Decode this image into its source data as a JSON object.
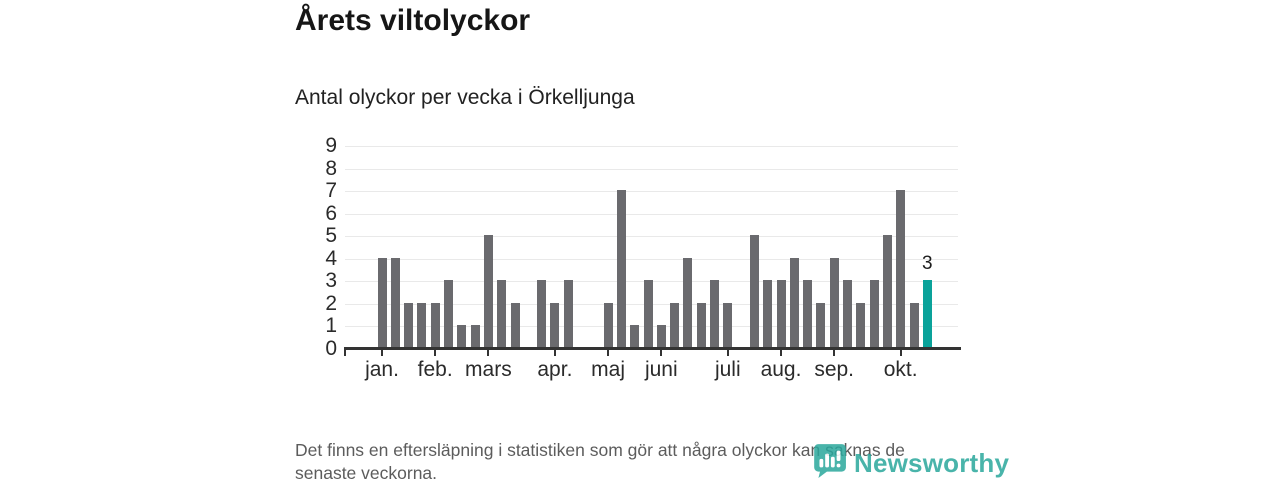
{
  "header": {
    "title": "Årets viltolyckor",
    "subtitle": "Antal olyckor per vecka i Örkelljunga"
  },
  "footer": {
    "lines": [
      "Det finns en eftersläpning i statistiken som gör att några olyckor kan saknas de",
      "senaste veckorna."
    ]
  },
  "logo": {
    "text": "Newsworthy",
    "icon": "newsworthy-pin-barchart-icon"
  },
  "colors": {
    "bar": "#6a6a6e",
    "highlight": "#0aa29a",
    "grid": "#e9e9e9",
    "axis": "#333333",
    "logo_teal": "#2aa79c"
  },
  "chart_data": {
    "type": "bar",
    "x_unit": "week",
    "title": "Årets viltolyckor",
    "subtitle": "Antal olyckor per vecka i Örkelljunga",
    "ylim": [
      0,
      9
    ],
    "y_ticks": [
      0,
      1,
      2,
      3,
      4,
      5,
      6,
      7,
      8,
      9
    ],
    "grid": true,
    "values": [
      4,
      4,
      2,
      2,
      2,
      3,
      1,
      1,
      5,
      3,
      2,
      0,
      3,
      2,
      3,
      0,
      0,
      2,
      7,
      1,
      3,
      1,
      2,
      4,
      2,
      3,
      2,
      0,
      5,
      3,
      3,
      4,
      3,
      2,
      4,
      3,
      2,
      3,
      5,
      7,
      2,
      3
    ],
    "highlight_index": 41,
    "highlight_label": "3",
    "month_ticks": [
      {
        "label": "jan.",
        "week": 1
      },
      {
        "label": "feb.",
        "week": 5
      },
      {
        "label": "mars",
        "week": 9
      },
      {
        "label": "apr.",
        "week": 14
      },
      {
        "label": "maj",
        "week": 18
      },
      {
        "label": "juni",
        "week": 22
      },
      {
        "label": "juli",
        "week": 27
      },
      {
        "label": "aug.",
        "week": 31
      },
      {
        "label": "sep.",
        "week": 35
      },
      {
        "label": "okt.",
        "week": 40
      }
    ]
  }
}
